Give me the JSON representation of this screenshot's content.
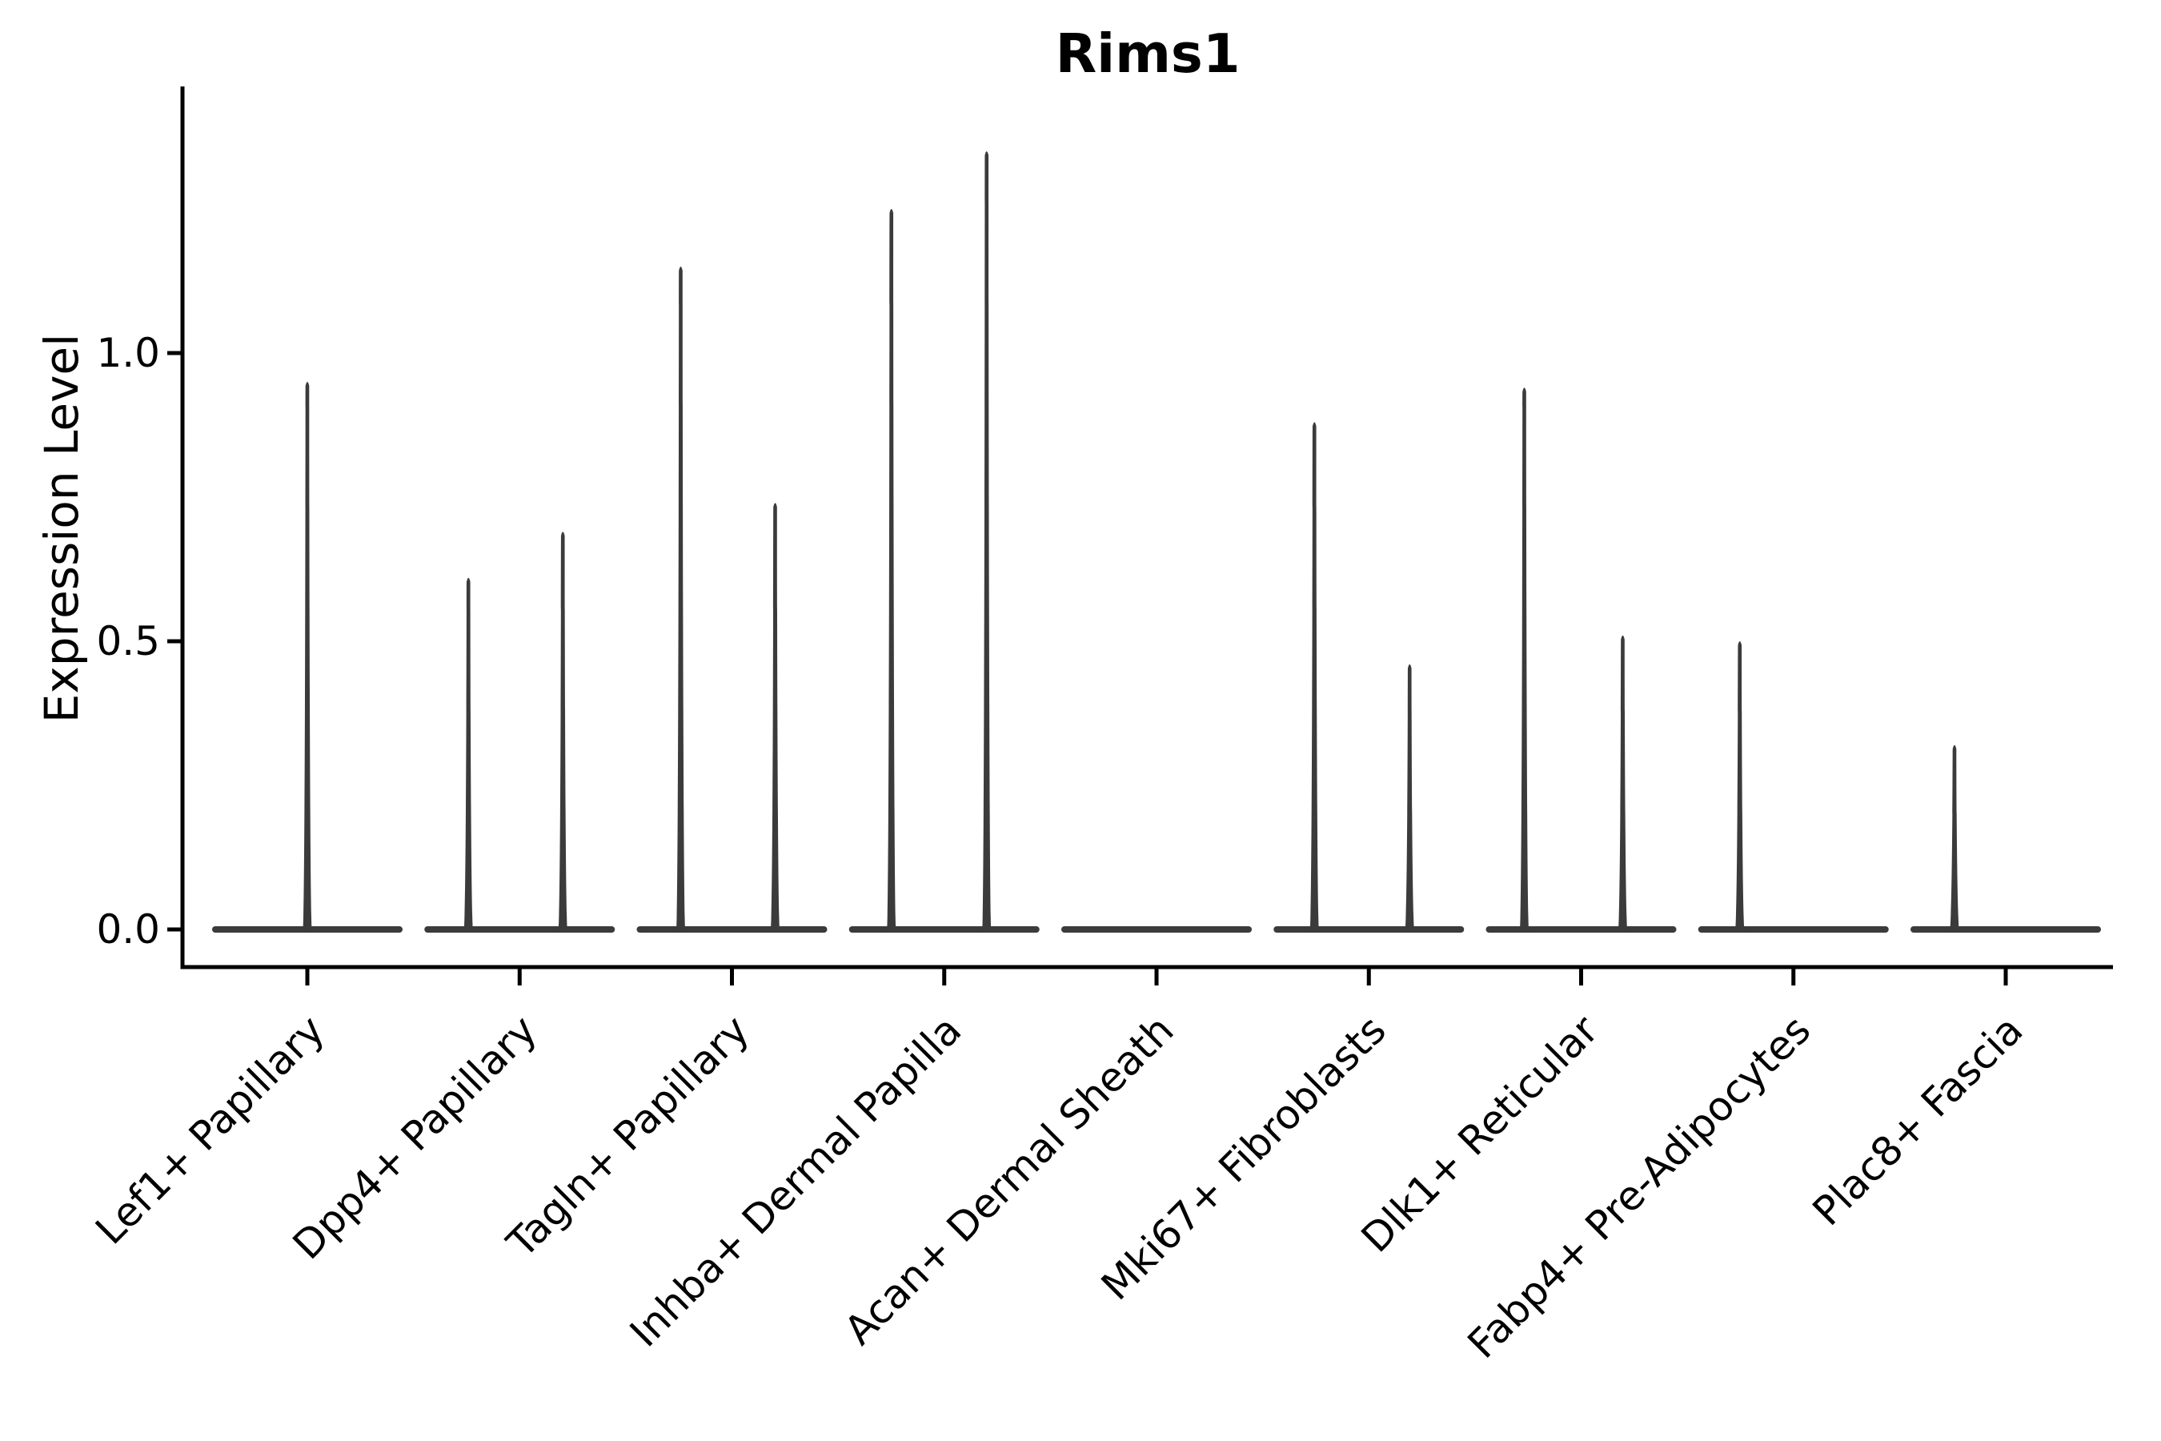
{
  "chart_data": {
    "type": "violin",
    "title": "Rims1",
    "ylabel": "Expression Level",
    "xlabel": "",
    "yticks": [
      "0.0",
      "0.5",
      "1.0"
    ],
    "ytick_values": [
      0.0,
      0.5,
      1.0
    ],
    "ylim": [
      -0.065,
      1.46
    ],
    "grid": false,
    "legend": "none",
    "violin_color": "#3b3b3b",
    "axis_color": "#000000",
    "background_color": "#ffffff",
    "categories": [
      {
        "label": "Lef1+ Papillary",
        "max_expression": 0.95,
        "spikes": [
          {
            "dx": 0,
            "value": 0.95
          }
        ]
      },
      {
        "label": "Dpp4+ Papillary",
        "max_expression": 0.69,
        "spikes": [
          {
            "dx": -64,
            "value": 0.61
          },
          {
            "dx": 54,
            "value": 0.69
          }
        ]
      },
      {
        "label": "Tagln+ Papillary",
        "max_expression": 1.15,
        "spikes": [
          {
            "dx": -64,
            "value": 1.15
          },
          {
            "dx": 54,
            "value": 0.74
          }
        ]
      },
      {
        "label": "Inhba+ Dermal Papilla",
        "max_expression": 1.35,
        "spikes": [
          {
            "dx": -66,
            "value": 1.25
          },
          {
            "dx": 53,
            "value": 1.35
          }
        ]
      },
      {
        "label": "Acan+ Dermal Sheath",
        "max_expression": 0.0,
        "spikes": []
      },
      {
        "label": "Mki67+ Fibroblasts",
        "max_expression": 0.88,
        "spikes": [
          {
            "dx": -68,
            "value": 0.88
          },
          {
            "dx": 51,
            "value": 0.46
          }
        ]
      },
      {
        "label": "Dlk1+ Reticular",
        "max_expression": 0.94,
        "spikes": [
          {
            "dx": -71,
            "value": 0.94
          },
          {
            "dx": 52,
            "value": 0.51
          }
        ]
      },
      {
        "label": "Fabp4+ Pre-Adipocytes",
        "max_expression": 0.5,
        "spikes": [
          {
            "dx": -67,
            "value": 0.5
          }
        ]
      },
      {
        "label": "Plac8+ Fascia",
        "max_expression": 0.32,
        "spikes": [
          {
            "dx": -64,
            "value": 0.32
          }
        ]
      }
    ]
  }
}
